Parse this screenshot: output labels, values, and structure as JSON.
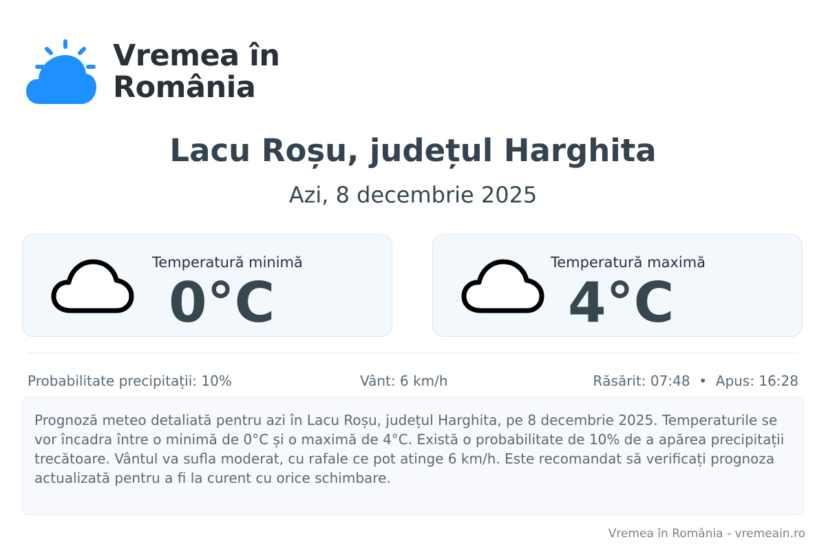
{
  "brand": {
    "name_line1": "Vremea în",
    "name_line2": "România",
    "accent": "#1e90ff"
  },
  "header": {
    "title": "Lacu Roșu, județul Harghita",
    "date": "Azi, 8 decembrie 2025"
  },
  "cards": [
    {
      "label": "Temperatură minimă",
      "value": "0°C",
      "icon": "cloud-icon"
    },
    {
      "label": "Temperatură maximă",
      "value": "4°C",
      "icon": "cloud-icon"
    }
  ],
  "stats": {
    "precipitation": "Probabilitate precipitații: 10%",
    "wind": "Vânt: 6 km/h",
    "sun": "Răsărit: 07:48  •  Apus: 16:28"
  },
  "description": "Prognoză meteo detaliată pentru azi în Lacu Roșu, județul Harghita, pe 8 decembrie 2025. Temperaturile se vor încadra între o minimă de 0°C și o maximă de 4°C. Există o probabilitate de 10% de a apărea precipitații trecătoare. Vântul va sufla moderat, cu rafale ce pot atinge 6 km/h. Este recomandat să verificați prognoza actualizată pentru a fi la curent cu orice schimbare.",
  "footer": "Vremea în România - vremeain.ro"
}
